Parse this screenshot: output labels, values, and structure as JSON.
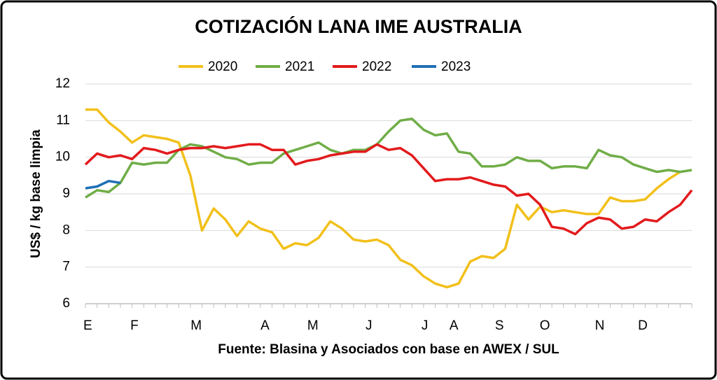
{
  "chart_data": {
    "type": "line",
    "title": "COTIZACIÓN LANA IME AUSTRALIA",
    "y_label": "US$ / kg base limpia",
    "x_label": "Fuente: Blasina y Asociados con base en AWEX / SUL",
    "x": [
      0,
      1,
      2,
      3,
      4,
      5,
      6,
      7,
      8,
      9,
      10,
      11,
      12,
      13,
      14,
      15,
      16,
      17,
      18,
      19,
      20,
      21,
      22,
      23,
      24,
      25,
      26,
      27,
      28,
      29,
      30,
      31,
      32,
      33,
      34,
      35,
      36,
      37,
      38,
      39,
      40,
      41,
      42,
      43,
      44,
      45,
      46,
      47,
      48,
      49,
      50,
      51,
      52
    ],
    "xlim": [
      0,
      52
    ],
    "xticks": [
      {
        "value": 0.2,
        "label": "E"
      },
      {
        "value": 4.2,
        "label": "F"
      },
      {
        "value": 9.5,
        "label": "M"
      },
      {
        "value": 15.4,
        "label": "A"
      },
      {
        "value": 19.5,
        "label": "M"
      },
      {
        "value": 24.3,
        "label": "J"
      },
      {
        "value": 29.1,
        "label": "J"
      },
      {
        "value": 31.6,
        "label": "A"
      },
      {
        "value": 35.5,
        "label": "S"
      },
      {
        "value": 39.4,
        "label": "O"
      },
      {
        "value": 44.1,
        "label": "N"
      },
      {
        "value": 47.8,
        "label": "D"
      }
    ],
    "ylim": [
      6,
      12
    ],
    "yticks": [
      6,
      7,
      8,
      9,
      10,
      11,
      12
    ],
    "grid": true,
    "legend": "top",
    "series": [
      {
        "name": "2020",
        "color": "#f2c01a",
        "values": [
          11.3,
          11.3,
          10.95,
          10.7,
          10.4,
          10.6,
          10.55,
          10.5,
          10.4,
          9.5,
          8.0,
          8.6,
          8.3,
          7.85,
          8.25,
          8.05,
          7.95,
          7.5,
          7.65,
          7.6,
          7.8,
          8.25,
          8.05,
          7.75,
          7.7,
          7.75,
          7.6,
          7.2,
          7.05,
          6.75,
          6.55,
          6.45,
          6.55,
          7.15,
          7.3,
          7.25,
          7.5,
          8.7,
          8.3,
          8.65,
          8.5,
          8.55,
          8.5,
          8.45,
          8.45,
          8.9,
          8.8,
          8.8,
          8.85,
          9.15,
          9.4,
          9.6,
          null
        ]
      },
      {
        "name": "2021",
        "color": "#70ad47",
        "values": [
          8.9,
          9.1,
          9.05,
          9.3,
          9.85,
          9.8,
          9.85,
          9.85,
          10.2,
          10.35,
          10.3,
          10.15,
          10.0,
          9.95,
          9.8,
          9.85,
          9.85,
          10.1,
          10.2,
          10.3,
          10.4,
          10.2,
          10.1,
          10.2,
          10.2,
          10.35,
          10.7,
          11.0,
          11.05,
          10.75,
          10.6,
          10.65,
          10.15,
          10.1,
          9.75,
          9.75,
          9.8,
          10.0,
          9.9,
          9.9,
          9.7,
          9.75,
          9.75,
          9.7,
          10.2,
          10.05,
          10.0,
          9.8,
          9.7,
          9.6,
          9.65,
          9.6,
          9.65
        ]
      },
      {
        "name": "2022",
        "color": "#e31a1c",
        "values": [
          9.8,
          10.1,
          10.0,
          10.05,
          9.95,
          10.25,
          10.2,
          10.1,
          10.2,
          10.25,
          10.25,
          10.3,
          10.25,
          10.3,
          10.35,
          10.35,
          10.2,
          10.2,
          9.8,
          9.9,
          9.95,
          10.05,
          10.1,
          10.15,
          10.15,
          10.35,
          10.2,
          10.25,
          10.05,
          9.7,
          9.35,
          9.4,
          9.4,
          9.45,
          9.35,
          9.25,
          9.2,
          8.95,
          9.0,
          8.7,
          8.1,
          8.05,
          7.9,
          8.2,
          8.35,
          8.3,
          8.05,
          8.1,
          8.3,
          8.25,
          8.5,
          8.7,
          9.1
        ]
      },
      {
        "name": "2023",
        "color": "#1f6fb4",
        "values": [
          9.15,
          9.2,
          9.35,
          9.3,
          null,
          null,
          null,
          null,
          null,
          null,
          null,
          null,
          null,
          null,
          null,
          null,
          null,
          null,
          null,
          null,
          null,
          null,
          null,
          null,
          null,
          null,
          null,
          null,
          null,
          null,
          null,
          null,
          null,
          null,
          null,
          null,
          null,
          null,
          null,
          null,
          null,
          null,
          null,
          null,
          null,
          null,
          null,
          null,
          null,
          null,
          null,
          null,
          null
        ]
      }
    ]
  }
}
